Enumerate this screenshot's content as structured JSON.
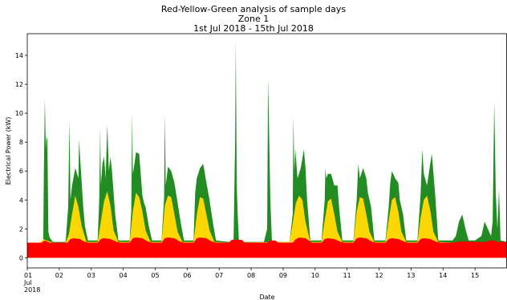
{
  "chart_data": {
    "type": "area",
    "title_lines": [
      "Red-Yellow-Green analysis of sample days",
      "Zone 1",
      "1st Jul 2018 - 15th Jul 2018"
    ],
    "xlabel": "Date",
    "ylabel": "Electrical Power (kW)",
    "xlim": [
      1,
      16
    ],
    "ylim": [
      -0.7,
      15.5
    ],
    "yticks": [
      0,
      2,
      4,
      6,
      8,
      10,
      12,
      14
    ],
    "xticks": [
      {
        "x": 1,
        "label": "01",
        "sub1": "Jul",
        "sub2": "2018"
      },
      {
        "x": 2,
        "label": "02"
      },
      {
        "x": 3,
        "label": "03"
      },
      {
        "x": 4,
        "label": "04"
      },
      {
        "x": 5,
        "label": "05"
      },
      {
        "x": 6,
        "label": "06"
      },
      {
        "x": 7,
        "label": "07"
      },
      {
        "x": 8,
        "label": "08"
      },
      {
        "x": 9,
        "label": "09"
      },
      {
        "x": 10,
        "label": "10"
      },
      {
        "x": 11,
        "label": "11"
      },
      {
        "x": 12,
        "label": "12"
      },
      {
        "x": 13,
        "label": "13"
      },
      {
        "x": 14,
        "label": "14"
      },
      {
        "x": 15,
        "label": "15"
      }
    ],
    "colors": {
      "red": "#ff0000",
      "yellow": "#ffd700",
      "green": "#228b22"
    },
    "series": {
      "red": {
        "x": [
          1,
          1.45,
          1.55,
          1.7,
          1.9,
          2.0,
          2.25,
          2.35,
          2.45,
          2.65,
          2.75,
          2.9,
          3.2,
          3.3,
          3.4,
          3.6,
          3.75,
          3.9,
          4.2,
          4.3,
          4.4,
          4.6,
          4.75,
          4.9,
          5.2,
          5.3,
          5.4,
          5.6,
          5.75,
          5.9,
          6.2,
          6.3,
          6.4,
          6.6,
          6.75,
          6.9,
          7.3,
          7.4,
          7.7,
          7.8,
          8.5,
          8.6,
          8.75,
          8.85,
          9.3,
          9.4,
          9.5,
          9.7,
          9.8,
          9.9,
          10.2,
          10.3,
          10.4,
          10.6,
          10.75,
          10.9,
          11.2,
          11.3,
          11.4,
          11.6,
          11.75,
          11.9,
          12.2,
          12.3,
          12.4,
          12.6,
          12.75,
          12.9,
          13.2,
          13.3,
          13.4,
          13.6,
          13.75,
          13.9,
          14.3,
          14.6,
          15.0,
          15.3,
          15.5,
          15.6,
          15.7,
          16
        ],
        "y": [
          1.05,
          1.05,
          1.2,
          1.05,
          1.05,
          1.05,
          1.05,
          1.3,
          1.35,
          1.3,
          1.15,
          1.05,
          1.05,
          1.3,
          1.35,
          1.3,
          1.15,
          1.05,
          1.05,
          1.35,
          1.4,
          1.35,
          1.15,
          1.05,
          1.05,
          1.35,
          1.4,
          1.35,
          1.15,
          1.05,
          1.05,
          1.35,
          1.4,
          1.35,
          1.15,
          1.05,
          1.05,
          1.25,
          1.25,
          1.05,
          1.05,
          1.2,
          1.2,
          1.05,
          1.05,
          1.3,
          1.4,
          1.35,
          1.2,
          1.05,
          1.05,
          1.3,
          1.35,
          1.3,
          1.15,
          1.05,
          1.05,
          1.35,
          1.4,
          1.35,
          1.15,
          1.05,
          1.05,
          1.3,
          1.35,
          1.3,
          1.15,
          1.05,
          1.05,
          1.3,
          1.35,
          1.3,
          1.15,
          1.05,
          1.05,
          1.15,
          1.1,
          1.1,
          1.2,
          1.2,
          1.1,
          1.1
        ]
      },
      "yellow": {
        "x": [
          1,
          1.4,
          1.5,
          1.6,
          1.8,
          2.2,
          2.3,
          2.4,
          2.5,
          2.6,
          2.7,
          2.85,
          3.2,
          3.3,
          3.4,
          3.5,
          3.6,
          3.7,
          3.85,
          4.2,
          4.3,
          4.4,
          4.5,
          4.6,
          4.7,
          4.85,
          5.2,
          5.3,
          5.4,
          5.5,
          5.6,
          5.7,
          5.85,
          6.2,
          6.3,
          6.4,
          6.5,
          6.6,
          6.7,
          6.85,
          7.3,
          9.2,
          9.3,
          9.4,
          9.5,
          9.6,
          9.7,
          9.85,
          10.2,
          10.3,
          10.4,
          10.5,
          10.6,
          10.7,
          10.85,
          11.2,
          11.3,
          11.4,
          11.5,
          11.6,
          11.7,
          11.85,
          12.2,
          12.3,
          12.4,
          12.5,
          12.6,
          12.7,
          12.85,
          13.2,
          13.3,
          13.4,
          13.5,
          13.6,
          13.7,
          13.85,
          14.3,
          16
        ],
        "y": [
          1.05,
          1.05,
          1.3,
          1.2,
          1.05,
          1.05,
          1.6,
          3.0,
          4.3,
          3.5,
          2.2,
          1.1,
          1.1,
          2.5,
          3.9,
          4.6,
          3.6,
          1.9,
          1.1,
          1.1,
          3.2,
          4.5,
          4.2,
          3.2,
          1.9,
          1.1,
          1.1,
          3.6,
          4.3,
          4.2,
          3.0,
          1.8,
          1.1,
          1.1,
          3.0,
          4.2,
          4.1,
          3.0,
          1.9,
          1.1,
          1.05,
          1.1,
          2.4,
          3.8,
          4.3,
          4.0,
          2.5,
          1.1,
          1.1,
          2.6,
          3.9,
          4.1,
          3.0,
          1.8,
          1.1,
          1.1,
          3.2,
          4.2,
          4.1,
          3.0,
          1.8,
          1.1,
          1.1,
          2.6,
          4.0,
          4.2,
          3.2,
          1.8,
          1.1,
          1.1,
          2.8,
          4.0,
          4.3,
          3.3,
          1.8,
          1.1,
          1.05,
          1.05
        ]
      },
      "green": {
        "x": [
          1,
          1.5,
          1.52,
          1.55,
          1.58,
          1.6,
          1.63,
          1.66,
          1.7,
          1.8,
          2.2,
          2.28,
          2.32,
          2.35,
          2.4,
          2.5,
          2.6,
          2.62,
          2.65,
          2.7,
          2.75,
          2.8,
          2.9,
          3.2,
          3.25,
          3.28,
          3.3,
          3.35,
          3.4,
          3.45,
          3.5,
          3.55,
          3.6,
          3.65,
          3.75,
          3.85,
          4.2,
          4.25,
          4.28,
          4.3,
          4.35,
          4.4,
          4.5,
          4.6,
          4.65,
          4.7,
          4.8,
          4.9,
          5.2,
          5.28,
          5.3,
          5.33,
          5.4,
          5.5,
          5.6,
          5.65,
          5.7,
          5.8,
          5.9,
          6.2,
          6.25,
          6.3,
          6.4,
          6.5,
          6.6,
          6.7,
          6.8,
          6.9,
          7.3,
          7.45,
          7.5,
          7.52,
          7.55,
          7.58,
          7.62,
          8.4,
          8.5,
          8.53,
          8.56,
          8.6,
          8.65,
          9.2,
          9.3,
          9.32,
          9.35,
          9.38,
          9.45,
          9.55,
          9.65,
          9.7,
          9.75,
          9.85,
          10.2,
          10.3,
          10.32,
          10.35,
          10.4,
          10.5,
          10.6,
          10.7,
          10.75,
          10.85,
          11.2,
          11.3,
          11.35,
          11.4,
          11.5,
          11.6,
          11.65,
          11.75,
          11.85,
          12.2,
          12.3,
          12.35,
          12.4,
          12.5,
          12.6,
          12.65,
          12.75,
          12.85,
          13.2,
          13.3,
          13.35,
          13.4,
          13.5,
          13.6,
          13.65,
          13.75,
          13.85,
          14.3,
          14.4,
          14.5,
          14.6,
          14.7,
          14.8,
          15.0,
          15.2,
          15.3,
          15.5,
          15.55,
          15.6,
          15.65,
          15.7,
          15.75,
          15.8,
          16
        ],
        "y": [
          1.05,
          1.05,
          6.0,
          11.0,
          7.5,
          8.4,
          8.1,
          1.8,
          1.4,
          1.1,
          1.1,
          3.5,
          9.5,
          4.0,
          5.0,
          6.2,
          5.5,
          8.2,
          7.0,
          5.2,
          3.5,
          2.2,
          1.2,
          1.2,
          4.0,
          9.0,
          5.0,
          6.5,
          7.0,
          5.5,
          9.2,
          6.0,
          7.0,
          6.0,
          3.0,
          1.2,
          1.2,
          3.2,
          10.0,
          5.8,
          6.5,
          7.3,
          7.2,
          4.3,
          3.8,
          3.5,
          2.2,
          1.2,
          1.2,
          4.2,
          9.9,
          5.0,
          6.3,
          6.0,
          5.2,
          4.5,
          3.8,
          2.4,
          1.2,
          1.2,
          4.5,
          5.5,
          6.2,
          6.5,
          5.2,
          4.0,
          2.5,
          1.2,
          1.1,
          1.1,
          8.0,
          15.0,
          5.0,
          3.0,
          1.1,
          1.1,
          2.0,
          12.4,
          8.8,
          4.0,
          1.1,
          1.1,
          3.0,
          9.8,
          6.0,
          7.5,
          5.5,
          6.2,
          7.5,
          6.2,
          4.0,
          1.2,
          1.2,
          4.0,
          6.2,
          5.5,
          5.8,
          5.8,
          5.0,
          5.0,
          3.5,
          1.2,
          1.2,
          4.0,
          6.5,
          5.5,
          6.2,
          5.5,
          4.5,
          3.5,
          1.2,
          1.2,
          3.5,
          5.2,
          6.0,
          5.5,
          5.2,
          4.0,
          3.0,
          1.2,
          1.2,
          4.5,
          7.5,
          5.8,
          5.0,
          6.5,
          7.2,
          4.5,
          1.2,
          1.2,
          1.5,
          2.5,
          3.0,
          2.0,
          1.2,
          1.2,
          1.5,
          2.5,
          1.5,
          2.5,
          10.8,
          4.5,
          2.0,
          4.7,
          1.2,
          1.1
        ]
      }
    }
  }
}
